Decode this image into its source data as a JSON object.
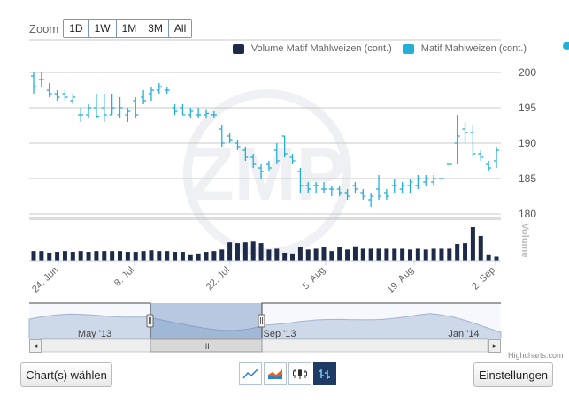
{
  "zoom": {
    "label": "Zoom",
    "buttons": [
      "1D",
      "1W",
      "1M",
      "3M",
      "All"
    ]
  },
  "legend": {
    "volume_label": "Volume Matif Mahlweizen (cont.)",
    "volume_color": "#1e2b48",
    "price_label": "Matif Mahlweizen (cont.)",
    "price_color": "#24b0d6"
  },
  "chart_data": {
    "type": "ohlc",
    "price_axis": {
      "ticks": [
        180,
        185,
        190,
        195,
        200
      ],
      "ylim": [
        180,
        202
      ]
    },
    "volume_axis_label": "Volume",
    "x_tick_labels": [
      "24. Jun",
      "8. Jul",
      "22. Jul",
      "5. Aug",
      "19. Aug",
      "2. Sep"
    ],
    "series": [
      {
        "name": "Matif Mahlweizen (cont.)",
        "ohlc": [
          [
            199.5,
            200,
            197,
            198
          ],
          [
            199,
            200,
            198,
            199
          ],
          [
            197.5,
            198.5,
            196.5,
            197
          ],
          [
            197,
            197.5,
            196,
            196.5
          ],
          [
            197,
            197.5,
            196,
            196.5
          ],
          [
            196,
            197,
            195.5,
            196.5
          ],
          [
            194,
            195,
            193,
            194
          ],
          [
            194,
            195.5,
            193.5,
            195
          ],
          [
            195,
            197,
            193.5,
            193.8
          ],
          [
            195,
            197,
            193,
            194
          ],
          [
            194,
            197,
            194,
            195
          ],
          [
            194,
            196.5,
            193.5,
            195
          ],
          [
            194,
            195,
            193,
            194.5
          ],
          [
            196,
            196.5,
            193.5,
            194
          ],
          [
            196.5,
            197.5,
            195.5,
            196
          ],
          [
            197,
            198,
            196,
            197.5
          ],
          [
            197.5,
            198.5,
            197,
            198
          ],
          [
            197.5,
            198,
            197,
            197.5
          ],
          [
            195,
            195.5,
            194,
            194.5
          ],
          [
            195,
            195.5,
            194,
            194
          ],
          [
            194,
            195,
            193.5,
            194.5
          ],
          [
            194,
            195,
            193.5,
            194
          ],
          [
            194,
            194.8,
            193.5,
            194.2
          ],
          [
            194,
            194.5,
            193.5,
            194
          ],
          [
            192,
            192.5,
            189.5,
            190
          ],
          [
            191,
            191.5,
            190,
            190.5
          ],
          [
            190,
            190.5,
            189,
            189.5
          ],
          [
            189,
            189.5,
            187.5,
            188
          ],
          [
            188,
            188.5,
            186.5,
            187
          ],
          [
            186.5,
            187,
            185,
            186
          ],
          [
            187,
            187.5,
            186,
            186.5
          ],
          [
            189,
            190,
            187,
            187.5
          ],
          [
            191,
            191,
            188,
            188.5
          ],
          [
            188,
            188.5,
            187,
            187.5
          ],
          [
            186,
            186.5,
            183,
            184
          ],
          [
            184,
            184.5,
            183,
            183.5
          ],
          [
            184,
            184.5,
            183,
            184
          ],
          [
            183.5,
            184.5,
            183,
            183.5
          ],
          [
            183.5,
            184,
            182.5,
            183.5
          ],
          [
            183.5,
            184,
            182.5,
            183
          ],
          [
            183,
            183.5,
            182,
            182.5
          ],
          [
            184,
            184.5,
            183,
            183.5
          ],
          [
            183,
            183.5,
            182,
            182.5
          ],
          [
            182,
            183,
            181,
            182.5
          ],
          [
            183.5,
            185.5,
            182,
            182.5
          ],
          [
            183,
            183.5,
            182,
            182.5
          ],
          [
            184,
            185,
            183,
            184
          ],
          [
            183.5,
            184.5,
            183,
            184
          ],
          [
            184,
            185,
            183,
            184.5
          ],
          [
            184,
            185.5,
            183.5,
            185
          ],
          [
            184.5,
            185.5,
            184,
            185
          ],
          [
            184.5,
            185.5,
            184,
            185
          ],
          [
            185,
            185,
            185,
            185
          ],
          [
            187,
            187,
            187,
            187
          ],
          [
            190,
            194,
            187,
            191
          ],
          [
            192,
            193,
            190,
            191.5
          ],
          [
            191.5,
            192.5,
            188,
            188.5
          ],
          [
            188.5,
            189,
            187.5,
            188
          ],
          [
            187,
            187.5,
            186,
            186.5
          ],
          [
            187.5,
            189.5,
            186.5,
            189
          ]
        ]
      }
    ],
    "volume_values": [
      24,
      24,
      20,
      22,
      24,
      22,
      24,
      22,
      24,
      24,
      24,
      24,
      22,
      22,
      24,
      26,
      24,
      24,
      22,
      22,
      16,
      18,
      22,
      24,
      28,
      46,
      44,
      46,
      48,
      44,
      28,
      30,
      20,
      18,
      34,
      28,
      30,
      34,
      24,
      34,
      28,
      36,
      30,
      30,
      30,
      30,
      30,
      30,
      28,
      30,
      28,
      30,
      30,
      30,
      42,
      44,
      84,
      62,
      16,
      10
    ]
  },
  "navigator": {
    "labels": [
      "May '13",
      "Sep '13",
      "Jan '14"
    ],
    "scroll_grip": "III",
    "left_arrow": "◂",
    "right_arrow": "▸"
  },
  "credits": "Highcharts.com",
  "buttons": {
    "choose_chart": "Chart(s) wählen",
    "settings": "Einstellungen"
  }
}
